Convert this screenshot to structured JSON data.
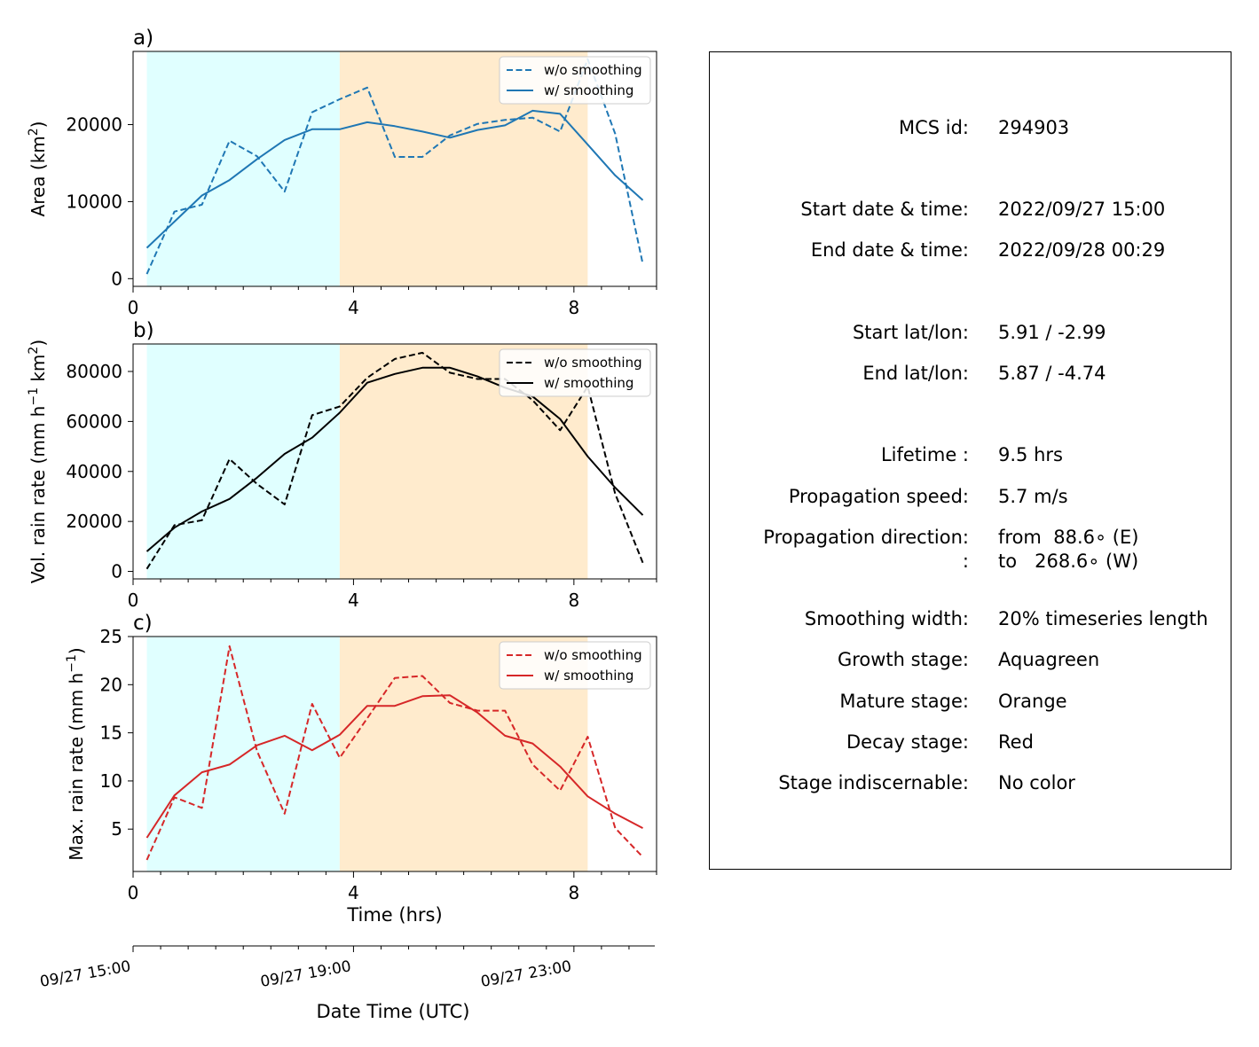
{
  "chart_data": [
    {
      "panel": "a)",
      "type": "line",
      "ylabel": "Area  (km²)",
      "ylabel_base": "Area  (km",
      "ylabel_sup": "2",
      "ylabel_end": ")",
      "xlabel": "",
      "xlim": [
        0,
        9.5
      ],
      "ylim": [
        -1000,
        29500
      ],
      "yticks": [
        0,
        10000,
        20000
      ],
      "xticks": [
        0,
        4,
        8
      ],
      "stages": [
        {
          "name": "Growth stage",
          "from": 0.25,
          "to": 3.75,
          "color": "#e0ffff"
        },
        {
          "name": "Mature stage",
          "from": 3.75,
          "to": 8.25,
          "color": "#ffebcd"
        }
      ],
      "series": [
        {
          "name": "w/o smoothing",
          "style": "dashed",
          "color": "#1f77b4",
          "x": [
            0.25,
            0.75,
            1.25,
            1.75,
            2.25,
            2.75,
            3.25,
            3.75,
            4.25,
            4.75,
            5.25,
            5.75,
            6.25,
            6.75,
            7.25,
            7.75,
            8.25,
            8.75,
            9.25
          ],
          "y": [
            600,
            8700,
            9600,
            17900,
            15900,
            11300,
            21600,
            23300,
            24800,
            15800,
            15800,
            18600,
            20100,
            20600,
            20900,
            19100,
            28500,
            18800,
            1900
          ]
        },
        {
          "name": "w/ smoothing",
          "style": "solid",
          "color": "#1f77b4",
          "x": [
            0.25,
            0.75,
            1.25,
            1.75,
            2.25,
            2.75,
            3.25,
            3.75,
            4.25,
            4.75,
            5.25,
            5.75,
            6.25,
            6.75,
            7.25,
            7.75,
            8.25,
            8.75,
            9.25
          ],
          "y": [
            4000,
            7400,
            10800,
            12800,
            15500,
            18000,
            19400,
            19400,
            20300,
            19800,
            19100,
            18300,
            19300,
            19900,
            21800,
            21400,
            17400,
            13400,
            10200
          ]
        }
      ]
    },
    {
      "panel": "b)",
      "type": "line",
      "ylabel": "Vol. rain rate (mm h⁻¹ km²)",
      "ylabel_base": "Vol. rain rate (mm h",
      "ylabel_sup": "−1",
      "ylabel_mid": " km",
      "ylabel_sup2": "2",
      "ylabel_end": ")",
      "xlabel": "",
      "xlim": [
        0,
        9.5
      ],
      "ylim": [
        -3000,
        91000
      ],
      "yticks": [
        0,
        20000,
        40000,
        60000,
        80000
      ],
      "xticks": [
        0,
        4,
        8
      ],
      "stages": [
        {
          "name": "Growth stage",
          "from": 0.25,
          "to": 3.75,
          "color": "#e0ffff"
        },
        {
          "name": "Mature stage",
          "from": 3.75,
          "to": 8.25,
          "color": "#ffebcd"
        }
      ],
      "series": [
        {
          "name": "w/o smoothing",
          "style": "dashed",
          "color": "#000000",
          "x": [
            0.25,
            0.75,
            1.25,
            1.75,
            2.25,
            2.75,
            3.25,
            3.75,
            4.25,
            4.75,
            5.25,
            5.75,
            6.25,
            6.75,
            7.25,
            7.75,
            8.25,
            8.75,
            9.25
          ],
          "y": [
            1000,
            18500,
            20500,
            45000,
            35000,
            26800,
            62500,
            66000,
            77500,
            85000,
            87500,
            79500,
            77000,
            77000,
            68500,
            56500,
            74000,
            31000,
            3500
          ]
        },
        {
          "name": "w/ smoothing",
          "style": "solid",
          "color": "#000000",
          "x": [
            0.25,
            0.75,
            1.25,
            1.75,
            2.25,
            2.75,
            3.25,
            3.75,
            4.25,
            4.75,
            5.25,
            5.75,
            6.25,
            6.75,
            7.25,
            7.75,
            8.25,
            8.75,
            9.25
          ],
          "y": [
            8000,
            17500,
            24000,
            29000,
            37500,
            47000,
            53500,
            63500,
            75500,
            79000,
            81500,
            81500,
            78000,
            73500,
            70000,
            61000,
            46000,
            33500,
            22500
          ]
        }
      ]
    },
    {
      "panel": "c)",
      "type": "line",
      "ylabel": "Max. rain rate  (mm h⁻¹)",
      "ylabel_base": "Max. rain rate  (mm h",
      "ylabel_sup": "−1",
      "ylabel_end": ")",
      "xlabel": "Time (hrs)",
      "xlim": [
        0,
        9.5
      ],
      "ylim": [
        0.6,
        25
      ],
      "yticks": [
        5,
        10,
        15,
        20,
        25
      ],
      "xticks": [
        0,
        4,
        8
      ],
      "stages": [
        {
          "name": "Growth stage",
          "from": 0.25,
          "to": 3.75,
          "color": "#e0ffff"
        },
        {
          "name": "Mature stage",
          "from": 3.75,
          "to": 8.25,
          "color": "#ffebcd"
        }
      ],
      "series": [
        {
          "name": "w/o smoothing",
          "style": "dashed",
          "color": "#d62728",
          "x": [
            0.25,
            0.75,
            1.25,
            1.75,
            2.25,
            2.75,
            3.25,
            3.75,
            4.25,
            4.75,
            5.25,
            5.75,
            6.25,
            6.75,
            7.25,
            7.75,
            8.25,
            8.75,
            9.25
          ],
          "y": [
            1.8,
            8.3,
            7.2,
            24.0,
            13.1,
            6.6,
            18.0,
            12.4,
            16.5,
            20.7,
            20.9,
            18.1,
            17.3,
            17.3,
            11.7,
            9.0,
            14.6,
            5.1,
            2.1
          ]
        },
        {
          "name": "w/ smoothing",
          "style": "solid",
          "color": "#d62728",
          "x": [
            0.25,
            0.75,
            1.25,
            1.75,
            2.25,
            2.75,
            3.25,
            3.75,
            4.25,
            4.75,
            5.25,
            5.75,
            6.25,
            6.75,
            7.25,
            7.75,
            8.25,
            8.75,
            9.25
          ],
          "y": [
            4.1,
            8.5,
            10.9,
            11.7,
            13.7,
            14.7,
            13.2,
            14.8,
            17.8,
            17.8,
            18.8,
            18.9,
            17.1,
            14.7,
            13.9,
            11.5,
            8.4,
            6.6,
            5.1
          ]
        }
      ]
    }
  ],
  "datetime_axis": {
    "label": "Date Time (UTC)",
    "ticks": [
      {
        "hours": 0,
        "label": "09/27 15:00"
      },
      {
        "hours": 4,
        "label": "09/27 19:00"
      },
      {
        "hours": 8,
        "label": "09/27 23:00"
      }
    ]
  },
  "info": {
    "mcs_id_label": "MCS id:",
    "mcs_id": "294903",
    "start_dt_label": "Start date & time:",
    "start_dt": "2022/09/27 15:00",
    "end_dt_label": "End date & time:",
    "end_dt": "2022/09/28 00:29",
    "start_latlon_label": "Start lat/lon:",
    "start_latlon": "5.91 / -2.99",
    "end_latlon_label": "End lat/lon:",
    "end_latlon": "5.87 / -4.74",
    "lifetime_label": "Lifetime :",
    "lifetime": "9.5 hrs",
    "prop_speed_label": "Propagation speed:",
    "prop_speed": "5.7 m/s",
    "prop_dir_label": "Propagation direction:",
    "prop_dir_from": "from  88.6∘ (E)",
    "prop_dir_label2": ":",
    "prop_dir_to": "to   268.6∘ (W)",
    "smoothing_label": "Smoothing width:",
    "smoothing": "20% timeseries length",
    "growth_label": "Growth stage:",
    "growth": "Aquagreen",
    "mature_label": "Mature stage:",
    "mature": "Orange",
    "decay_label": "Decay stage:",
    "decay": "Red",
    "indisc_label": "Stage indiscernable:",
    "indisc": "No color"
  }
}
